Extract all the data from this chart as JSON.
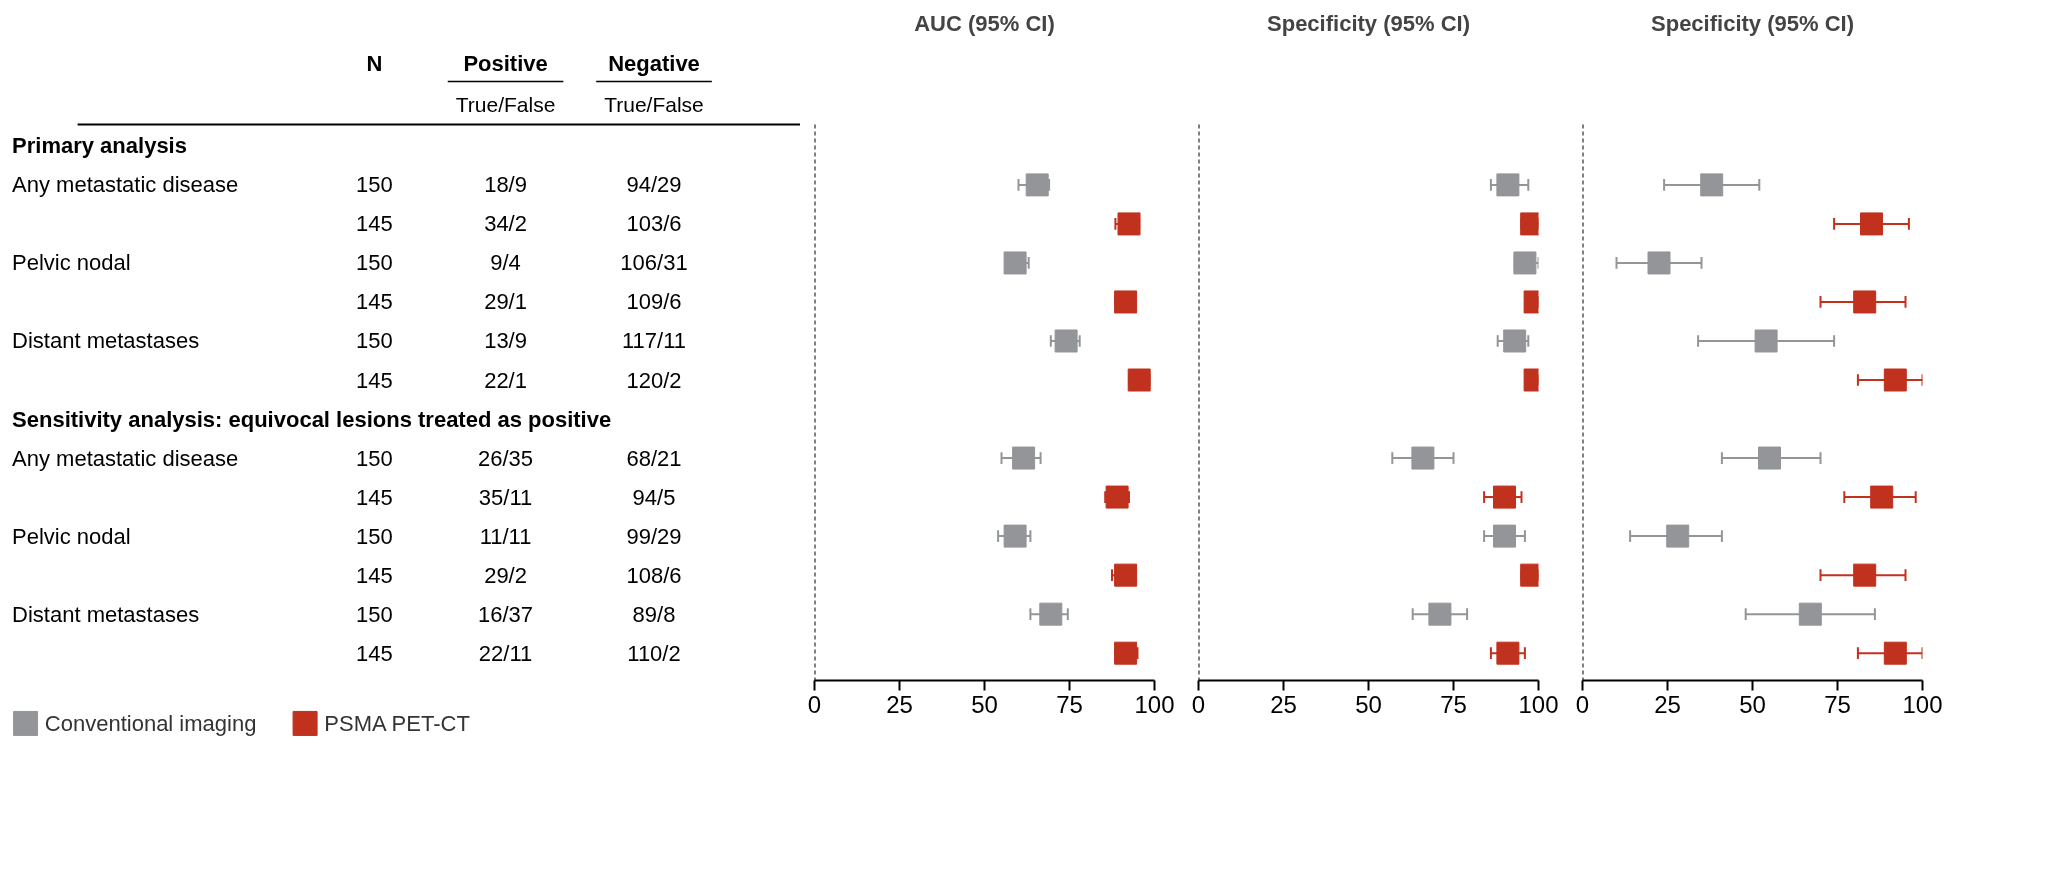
{
  "chart_data": [
    {
      "type": "other",
      "categories": [
        "N",
        "Positive",
        "Negative"
      ],
      "annotations": [
        "True/False",
        "True/False"
      ],
      "y_categories": [
        "Primary analysis",
        "Any metastatic disease",
        null,
        "Pelvic nodal",
        null,
        "Distant metastases",
        null,
        "Sensitivity analysis: equivocal lesions treated as positive",
        "Any metastatic disease",
        null,
        "Pelvic nodal",
        null,
        "Distant metastases",
        null
      ],
      "cell_labels": [
        null,
        [
          "150",
          "18/9",
          "94/29"
        ],
        [
          "145",
          "34/2",
          "103/6"
        ],
        [
          "150",
          "9/4",
          "106/31"
        ],
        [
          "145",
          "29/1",
          "109/6"
        ],
        [
          "150",
          "13/9",
          "117/11"
        ],
        [
          "145",
          "22/1",
          "120/2"
        ],
        null,
        [
          "150",
          "26/35",
          "68/21"
        ],
        [
          "145",
          "35/11",
          "94/5"
        ],
        [
          "150",
          "11/11",
          "99/29"
        ],
        [
          "145",
          "29/2",
          "108/6"
        ],
        [
          "150",
          "16/37",
          "89/8"
        ],
        [
          "145",
          "22/11",
          "110/2"
        ]
      ]
    },
    {
      "type": "scatter",
      "orientation": "horizontal",
      "title": "AUC (95% CI)",
      "categories": [
        null,
        null,
        null,
        null,
        null,
        null,
        null,
        null,
        null,
        null,
        null,
        null,
        null,
        null
      ],
      "xlim": [
        0,
        100
      ],
      "xticks": [
        0,
        25,
        50,
        75,
        100
      ],
      "tick_labels": "x",
      "marker": "square",
      "legend": "bottom",
      "ref_lines": [
        {
          "axis": "x",
          "value": 0,
          "line_style": "dashed"
        }
      ],
      "series": [
        {
          "name": "Conventional imaging",
          "color": "#939598",
          "values": [
            null,
            65.5,
            null,
            59,
            null,
            74,
            null,
            null,
            61.5,
            null,
            59,
            null,
            69.5,
            null
          ],
          "errors": [
            null,
            [
              60,
              69
            ],
            null,
            [
              56.5,
              63
            ],
            null,
            [
              69.5,
              78
            ],
            null,
            null,
            [
              55,
              66.5
            ],
            null,
            [
              54,
              63.5
            ],
            null,
            [
              63.5,
              74.5
            ],
            null
          ]
        },
        {
          "name": "PSMA PET-CT",
          "color": "#c0311e",
          "values": [
            null,
            null,
            92.5,
            null,
            91.5,
            null,
            95.5,
            null,
            null,
            89,
            null,
            91.5,
            null,
            91.5
          ],
          "errors": [
            null,
            null,
            [
              88.5,
              95.5
            ],
            null,
            [
              88.5,
              94
            ],
            null,
            [
              92.5,
              98.5
            ],
            null,
            null,
            [
              85.5,
              92.5
            ],
            null,
            [
              87.5,
              94.5
            ],
            null,
            [
              88.5,
              95
            ]
          ]
        }
      ]
    },
    {
      "type": "scatter",
      "orientation": "horizontal",
      "title": "Specificity (95% CI)",
      "categories": [
        null,
        null,
        null,
        null,
        null,
        null,
        null,
        null,
        null,
        null,
        null,
        null,
        null,
        null
      ],
      "xlim": [
        0,
        100
      ],
      "xticks": [
        0,
        25,
        50,
        75,
        100
      ],
      "tick_labels": "x",
      "marker": "square",
      "ref_lines": [
        {
          "axis": "x",
          "value": 0,
          "line_style": "dashed"
        }
      ],
      "series": [
        {
          "color": "#939598",
          "values": [
            null,
            91,
            null,
            96,
            null,
            93,
            null,
            null,
            66,
            null,
            90,
            null,
            71,
            null
          ],
          "errors": [
            null,
            [
              86,
              97
            ],
            null,
            [
              93,
              100
            ],
            null,
            [
              88,
              97
            ],
            null,
            null,
            [
              57,
              75
            ],
            null,
            [
              84,
              96
            ],
            null,
            [
              63,
              79
            ],
            null
          ]
        },
        {
          "color": "#c0311e",
          "values": [
            null,
            null,
            98,
            null,
            99,
            null,
            99,
            null,
            null,
            90,
            null,
            98,
            null,
            91
          ],
          "errors": [
            null,
            null,
            [
              95,
              100
            ],
            null,
            [
              96.5,
              100
            ],
            null,
            [
              96.5,
              100
            ],
            null,
            null,
            [
              84,
              95
            ],
            null,
            [
              95,
              100
            ],
            null,
            [
              86,
              96
            ]
          ]
        }
      ]
    },
    {
      "type": "scatter",
      "orientation": "horizontal",
      "title": "Specificity (95% CI)",
      "categories": [
        null,
        null,
        null,
        null,
        null,
        null,
        null,
        null,
        null,
        null,
        null,
        null,
        null,
        null
      ],
      "xlim": [
        0,
        100
      ],
      "xticks": [
        0,
        25,
        50,
        75,
        100
      ],
      "tick_labels": "x",
      "marker": "square",
      "ref_lines": [
        {
          "axis": "x",
          "value": 0,
          "line_style": "dashed"
        }
      ],
      "series": [
        {
          "color": "#939598",
          "values": [
            null,
            38,
            null,
            22.5,
            null,
            54,
            null,
            null,
            55,
            null,
            28,
            null,
            67,
            null
          ],
          "errors": [
            null,
            [
              24,
              52
            ],
            null,
            [
              10,
              35
            ],
            null,
            [
              34,
              74
            ],
            null,
            null,
            [
              41,
              70
            ],
            null,
            [
              14,
              41
            ],
            null,
            [
              48,
              86
            ],
            null
          ]
        },
        {
          "color": "#c0311e",
          "values": [
            null,
            null,
            85,
            null,
            83,
            null,
            92,
            null,
            null,
            88,
            null,
            83,
            null,
            92
          ],
          "errors": [
            null,
            null,
            [
              74,
              96
            ],
            null,
            [
              70,
              95
            ],
            null,
            [
              81,
              100
            ],
            null,
            null,
            [
              77,
              98
            ],
            null,
            [
              70,
              95
            ],
            null,
            [
              81,
              100
            ]
          ]
        }
      ]
    }
  ]
}
